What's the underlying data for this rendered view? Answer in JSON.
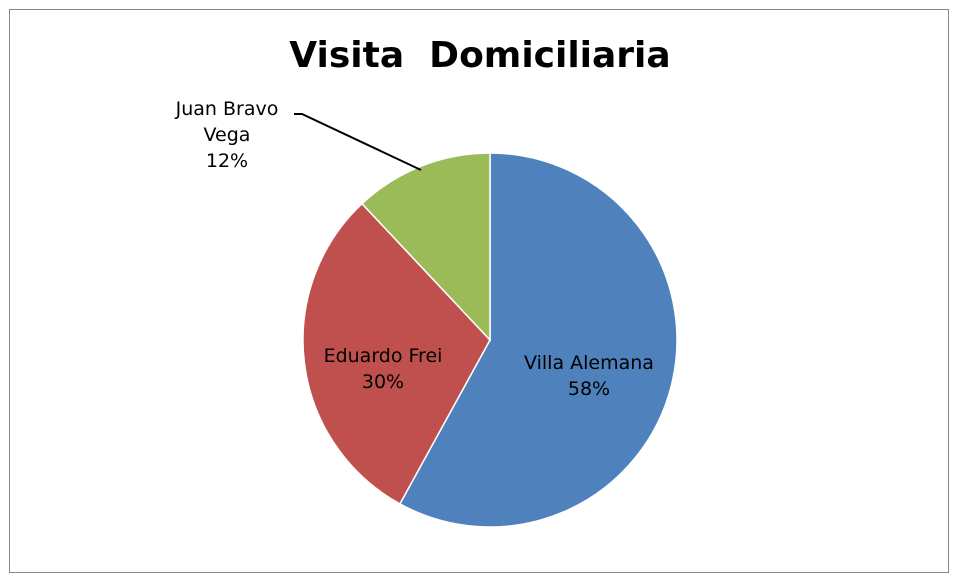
{
  "chart_data": {
    "type": "pie",
    "title": "Visita  Domiciliaria",
    "start_angle_deg": 0,
    "direction": "clockwise",
    "slices": [
      {
        "name": "Villa Alemana",
        "value": 58,
        "label": "58%",
        "color": "#4F81BD"
      },
      {
        "name": "Eduardo Frei",
        "value": 30,
        "label": "30%",
        "color": "#C0504D"
      },
      {
        "name": "Juan Bravo Vega",
        "value": 12,
        "label": "12%",
        "color": "#9BBB59"
      }
    ],
    "data_labels": [
      {
        "lines": [
          "Villa Alemana",
          "58%"
        ]
      },
      {
        "lines": [
          "Eduardo Frei",
          "30%"
        ]
      },
      {
        "lines": [
          "Juan Bravo",
          "Vega",
          "12%"
        ]
      }
    ],
    "legend": "none"
  }
}
